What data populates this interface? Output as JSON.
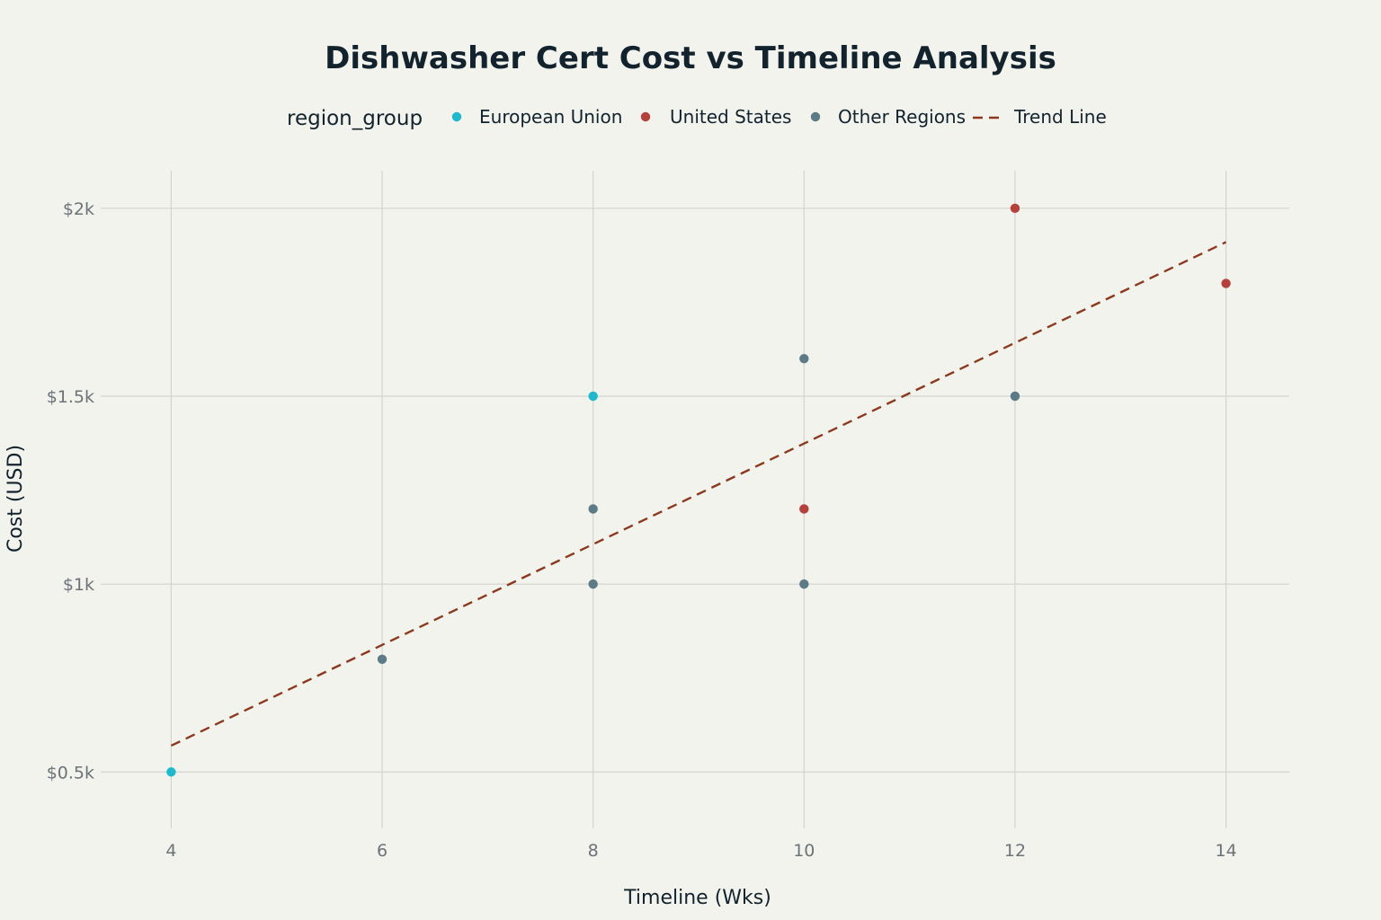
{
  "chart_data": {
    "type": "scatter",
    "title": "Dishwasher Cert Cost vs Timeline Analysis",
    "xlabel": "Timeline (Wks)",
    "ylabel": "Cost (USD)",
    "legend_title": "region_group",
    "legend_position": "top",
    "grid": true,
    "xlim": [
      3.4,
      14.6
    ],
    "ylim": [
      350,
      2100
    ],
    "x_ticks": [
      4,
      6,
      8,
      10,
      12,
      14
    ],
    "x_tick_labels": [
      "4",
      "6",
      "8",
      "10",
      "12",
      "14"
    ],
    "y_ticks": [
      500,
      1000,
      1500,
      2000
    ],
    "y_tick_labels": [
      "$0.5k",
      "$1k",
      "$1.5k",
      "$2k"
    ],
    "series": [
      {
        "name": "European Union",
        "color": "#1fb8cd",
        "points": [
          {
            "x": 4,
            "y": 500
          },
          {
            "x": 8,
            "y": 1500
          }
        ]
      },
      {
        "name": "United States",
        "color": "#b4413c",
        "points": [
          {
            "x": 10,
            "y": 1200
          },
          {
            "x": 12,
            "y": 2000
          },
          {
            "x": 14,
            "y": 1800
          }
        ]
      },
      {
        "name": "Other Regions",
        "color": "#5d7b87",
        "points": [
          {
            "x": 6,
            "y": 800
          },
          {
            "x": 8,
            "y": 1000
          },
          {
            "x": 8,
            "y": 1200
          },
          {
            "x": 10,
            "y": 1000
          },
          {
            "x": 10,
            "y": 1600
          },
          {
            "x": 12,
            "y": 1500
          }
        ]
      }
    ],
    "trend_line": {
      "name": "Trend Line",
      "color": "#8b3a1f",
      "style": "dashed",
      "points": [
        {
          "x": 4,
          "y": 570
        },
        {
          "x": 14,
          "y": 1910
        }
      ]
    }
  }
}
